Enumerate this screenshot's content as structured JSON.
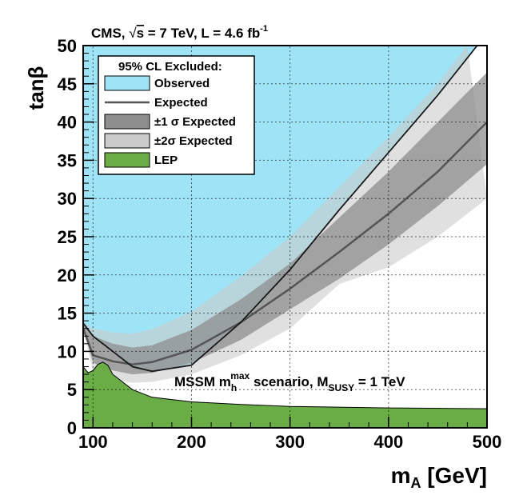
{
  "chart_data": {
    "type": "area",
    "header": {
      "prefix": "CMS, ",
      "sqrt": "√",
      "s": "s",
      "energy": " = 7 TeV, L = 4.6 fb",
      "lumi_exp": "-1"
    },
    "scenario": {
      "base": "MSSM m",
      "sub": "h",
      "sup": "max",
      "mid": " scenario, M",
      "sub2": "SUSY",
      "tail": " = 1 TeV"
    },
    "xlabel": {
      "base": "m",
      "sub": "A",
      "unit": " [GeV]"
    },
    "ylabel": "tanβ",
    "xlim": [
      90,
      500
    ],
    "ylim": [
      0,
      50
    ],
    "x_ticks": [
      100,
      200,
      300,
      400,
      500
    ],
    "y_ticks": [
      0,
      5,
      10,
      15,
      20,
      25,
      30,
      35,
      40,
      45,
      50
    ],
    "grid": true,
    "legend": {
      "placement": "top-left",
      "title": "95% CL Excluded:",
      "entries": [
        {
          "key": "observed",
          "label": "Observed",
          "color": "#9ee3f6",
          "kind": "box"
        },
        {
          "key": "expected",
          "label": "Expected",
          "color": "#555555",
          "kind": "line"
        },
        {
          "key": "one_sigma",
          "label": "±1 σ Expected",
          "color": "#8e8e8e",
          "kind": "box"
        },
        {
          "key": "two_sigma",
          "label": "±2σ Expected",
          "color": "#cbcbcb",
          "kind": "box"
        },
        {
          "key": "lep",
          "label": "LEP",
          "color": "#6aac46",
          "kind": "box"
        }
      ]
    },
    "colors": {
      "observed": "#9ee3f6",
      "one_sigma": "#8e8e8e",
      "two_sigma": "#cbcbcb",
      "lep": "#6aac46",
      "expected_line": "#555555",
      "observed_line": "#1a1a1a"
    },
    "series": {
      "observed": [
        [
          90,
          13.7
        ],
        [
          100,
          12
        ],
        [
          120,
          10
        ],
        [
          140,
          8
        ],
        [
          160,
          7.4
        ],
        [
          200,
          8.2
        ],
        [
          250,
          13.8
        ],
        [
          300,
          20.7
        ],
        [
          350,
          28.5
        ],
        [
          400,
          36
        ],
        [
          450,
          43.5
        ],
        [
          490,
          50
        ]
      ],
      "expected": [
        [
          90,
          13
        ],
        [
          100,
          9.5
        ],
        [
          120,
          8.7
        ],
        [
          140,
          8.3
        ],
        [
          160,
          8.6
        ],
        [
          200,
          10.2
        ],
        [
          250,
          13.8
        ],
        [
          300,
          18.2
        ],
        [
          350,
          23
        ],
        [
          400,
          28
        ],
        [
          450,
          33.5
        ],
        [
          500,
          40
        ]
      ],
      "one_sigma_upper": [
        [
          90,
          13.5
        ],
        [
          100,
          12
        ],
        [
          120,
          11
        ],
        [
          140,
          10.5
        ],
        [
          160,
          10.8
        ],
        [
          200,
          12.8
        ],
        [
          250,
          16.8
        ],
        [
          300,
          21.5
        ],
        [
          350,
          27.5
        ],
        [
          400,
          33.5
        ],
        [
          450,
          40
        ],
        [
          500,
          46.5
        ]
      ],
      "one_sigma_lower": [
        [
          90,
          13
        ],
        [
          100,
          8.5
        ],
        [
          120,
          7.5
        ],
        [
          140,
          7
        ],
        [
          160,
          7.2
        ],
        [
          200,
          8.5
        ],
        [
          250,
          11.5
        ],
        [
          300,
          15.5
        ],
        [
          350,
          19.5
        ],
        [
          400,
          24
        ],
        [
          450,
          29
        ],
        [
          500,
          34.5
        ]
      ],
      "two_sigma_upper": [
        [
          90,
          13.8
        ],
        [
          100,
          13
        ],
        [
          120,
          12.5
        ],
        [
          140,
          12.3
        ],
        [
          160,
          12.9
        ],
        [
          200,
          15.2
        ],
        [
          250,
          19.8
        ],
        [
          300,
          25
        ],
        [
          350,
          31.5
        ],
        [
          400,
          38
        ],
        [
          450,
          45
        ],
        [
          480,
          50
        ]
      ],
      "two_sigma_lower": [
        [
          90,
          12.8
        ],
        [
          100,
          7.5
        ],
        [
          120,
          6.3
        ],
        [
          140,
          5.9
        ],
        [
          160,
          6
        ],
        [
          200,
          7
        ],
        [
          250,
          9.5
        ],
        [
          300,
          13
        ],
        [
          350,
          18.8
        ],
        [
          400,
          21
        ],
        [
          450,
          25
        ],
        [
          500,
          30
        ]
      ],
      "lep": [
        [
          90,
          8
        ],
        [
          95,
          7.2
        ],
        [
          100,
          7.5
        ],
        [
          105,
          8.3
        ],
        [
          110,
          8.6
        ],
        [
          115,
          8.2
        ],
        [
          120,
          7
        ],
        [
          140,
          5
        ],
        [
          160,
          4
        ],
        [
          200,
          3.4
        ],
        [
          250,
          3.05
        ],
        [
          300,
          2.8
        ],
        [
          400,
          2.6
        ],
        [
          500,
          2.5
        ]
      ]
    }
  }
}
